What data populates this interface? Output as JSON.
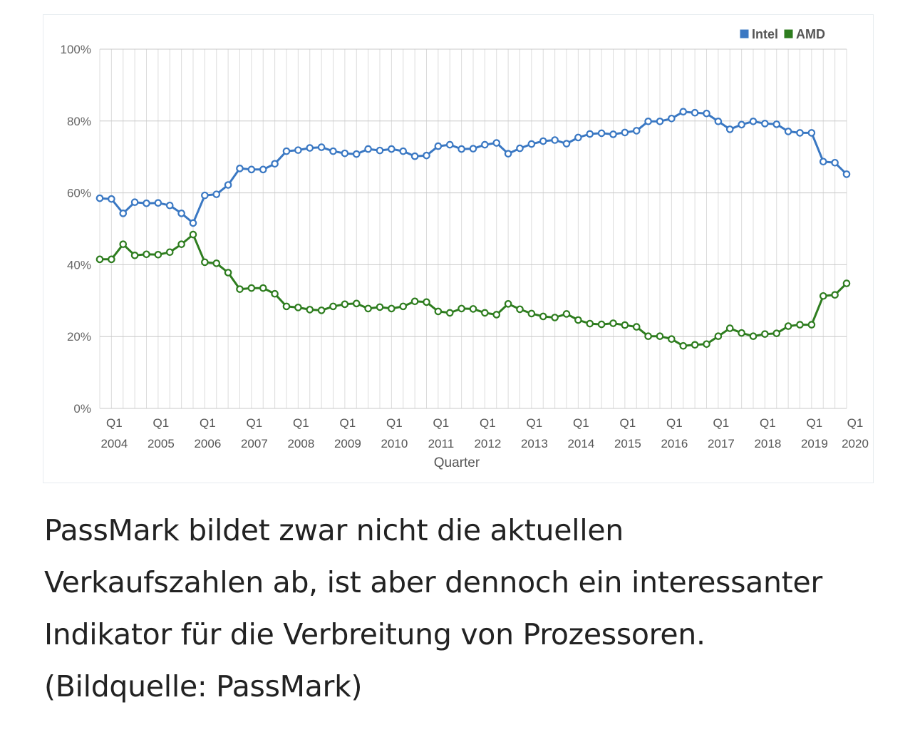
{
  "chart_data": {
    "type": "line",
    "title": "",
    "xlabel": "Quarter",
    "ylabel": "",
    "ylim": [
      0,
      100
    ],
    "y_ticks": [
      "0%",
      "20%",
      "40%",
      "60%",
      "80%",
      "100%"
    ],
    "x_quarter_labels": [
      "Q1",
      "Q1",
      "Q1",
      "Q1",
      "Q1",
      "Q1",
      "Q1",
      "Q1",
      "Q1",
      "Q1",
      "Q1",
      "Q1",
      "Q1",
      "Q1",
      "Q1",
      "Q1",
      "Q1"
    ],
    "x_year_labels": [
      "2004",
      "2005",
      "2006",
      "2007",
      "2008",
      "2009",
      "2010",
      "2011",
      "2012",
      "2013",
      "2014",
      "2015",
      "2016",
      "2017",
      "2018",
      "2019",
      "2020"
    ],
    "legend": {
      "position": "top-right",
      "entries": [
        "Intel",
        "AMD"
      ]
    },
    "series": [
      {
        "name": "Intel",
        "color": "#3a78c3",
        "values": [
          58.5,
          58.3,
          54.3,
          57.4,
          57.1,
          57.2,
          56.5,
          54.3,
          51.6,
          59.3,
          59.6,
          62.2,
          66.8,
          66.5,
          66.5,
          68.1,
          71.6,
          71.9,
          72.5,
          72.7,
          71.6,
          71.0,
          70.8,
          72.2,
          71.8,
          72.2,
          71.6,
          70.2,
          70.4,
          73.0,
          73.4,
          72.2,
          72.3,
          73.4,
          73.9,
          70.9,
          72.4,
          73.6,
          74.4,
          74.7,
          73.7,
          75.4,
          76.4,
          76.6,
          76.3,
          76.8,
          77.3,
          79.9,
          79.9,
          80.7,
          82.6,
          82.3,
          82.1,
          79.9,
          77.7,
          79.0,
          79.9,
          79.3,
          79.1,
          77.1,
          76.7,
          76.7,
          68.7,
          68.4,
          65.2
        ]
      },
      {
        "name": "AMD",
        "color": "#2e7d1f",
        "values": [
          41.5,
          41.5,
          45.7,
          42.6,
          42.9,
          42.8,
          43.5,
          45.7,
          48.4,
          40.7,
          40.4,
          37.8,
          33.2,
          33.5,
          33.5,
          31.9,
          28.4,
          28.1,
          27.5,
          27.3,
          28.4,
          29.0,
          29.2,
          27.8,
          28.2,
          27.8,
          28.4,
          29.8,
          29.6,
          27.0,
          26.6,
          27.8,
          27.7,
          26.6,
          26.1,
          29.1,
          27.6,
          26.4,
          25.6,
          25.3,
          26.3,
          24.6,
          23.6,
          23.4,
          23.7,
          23.2,
          22.7,
          20.1,
          20.1,
          19.3,
          17.4,
          17.7,
          17.9,
          20.1,
          22.3,
          21.0,
          20.1,
          20.7,
          20.9,
          22.9,
          23.3,
          23.3,
          31.3,
          31.6,
          34.8
        ]
      }
    ]
  },
  "caption": {
    "line1": "PassMark bildet zwar nicht die aktuellen",
    "line2": "Verkaufszahlen ab, ist aber dennoch ein interessanter",
    "line3": "Indikator für die Verbreitung von Prozessoren.",
    "line4": "(Bildquelle: PassMark)"
  }
}
